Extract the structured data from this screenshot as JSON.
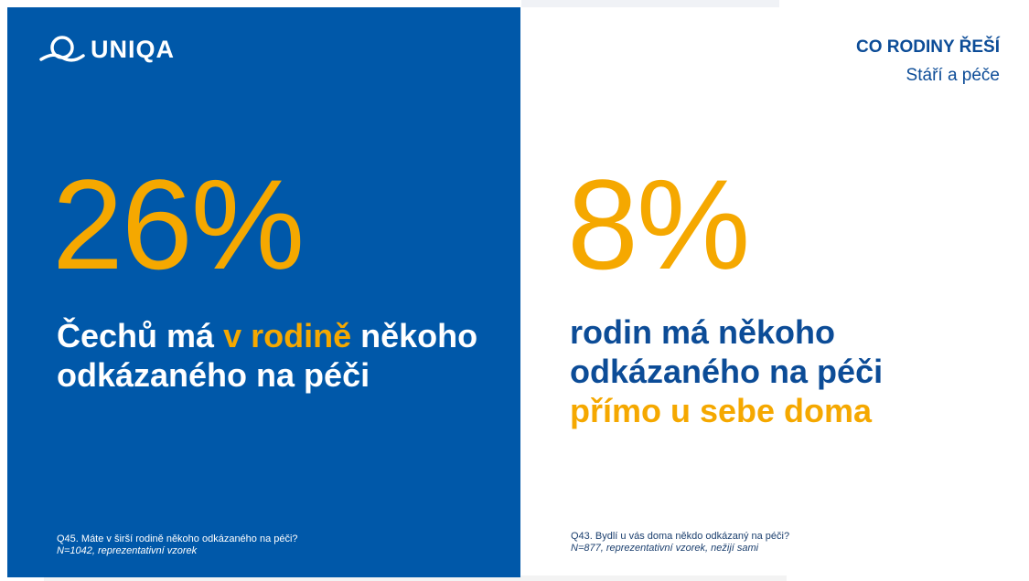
{
  "brand": {
    "logo_icon": "uniqa-logo-icon",
    "name": "UNIQA"
  },
  "header": {
    "title": "CO RODINY ŘEŠÍ",
    "subtitle": "Stáří a péče"
  },
  "colors": {
    "brand_blue": "#0058a9",
    "accent_orange": "#f5a800",
    "text_blue": "#0c4c97",
    "white": "#ffffff"
  },
  "stat_left": {
    "value": "26%",
    "text_part1": "Čechů má ",
    "text_highlight": "v rodině",
    "text_part2": " někoho odkázaného na péči",
    "question": "Q45. Máte v širší rodině někoho odkázaného na péči?",
    "sample": "N=1042, reprezentativní vzorek"
  },
  "stat_right": {
    "value": "8%",
    "text_part1": "rodin má někoho odkázaného na péči ",
    "text_highlight": "přímo u sebe doma",
    "question": "Q43. Bydlí u vás doma někdo odkázaný na péči?",
    "sample": "N=877, reprezentativní vzorek, nežijí sami"
  }
}
